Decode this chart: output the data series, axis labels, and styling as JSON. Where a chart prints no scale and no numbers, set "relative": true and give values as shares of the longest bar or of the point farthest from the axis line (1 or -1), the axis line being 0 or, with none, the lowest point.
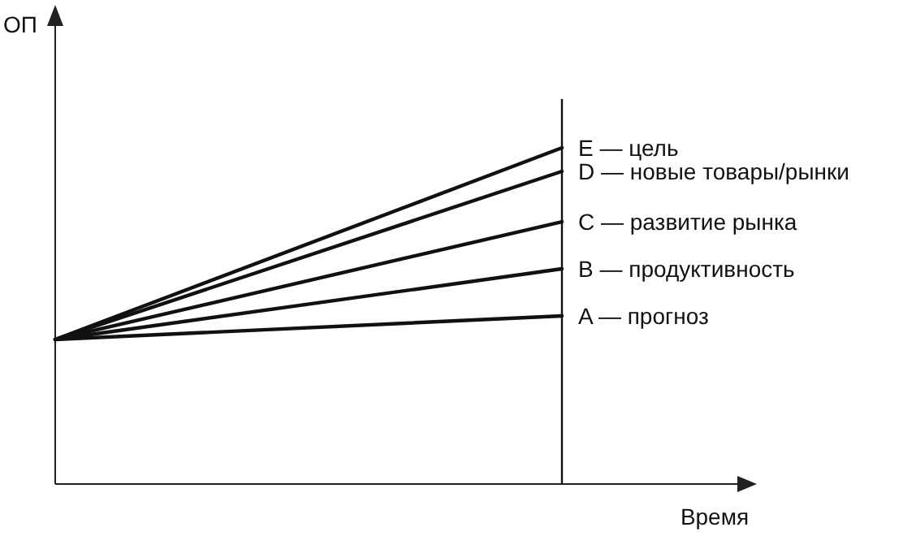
{
  "chart_data": {
    "type": "line",
    "relative": true,
    "xlabel": "Время",
    "ylabel": "ОП",
    "categories": [
      null,
      null
    ],
    "legend": false,
    "marker": "none",
    "line_style": "solid",
    "series": [
      {
        "name": "E — цель",
        "color": "#111111",
        "values": [
          0.43,
          1
        ]
      },
      {
        "name": "D — новые товары/рынки",
        "color": "#111111",
        "values": [
          0.43,
          0.93
        ]
      },
      {
        "name": "C — развитие рынка",
        "color": "#111111",
        "values": [
          0.43,
          0.78
        ]
      },
      {
        "name": "B — продуктивность",
        "color": "#111111",
        "values": [
          0.43,
          0.64
        ]
      },
      {
        "name": "A — прогноз",
        "color": "#111111",
        "values": [
          0.43,
          0.5
        ]
      }
    ]
  }
}
